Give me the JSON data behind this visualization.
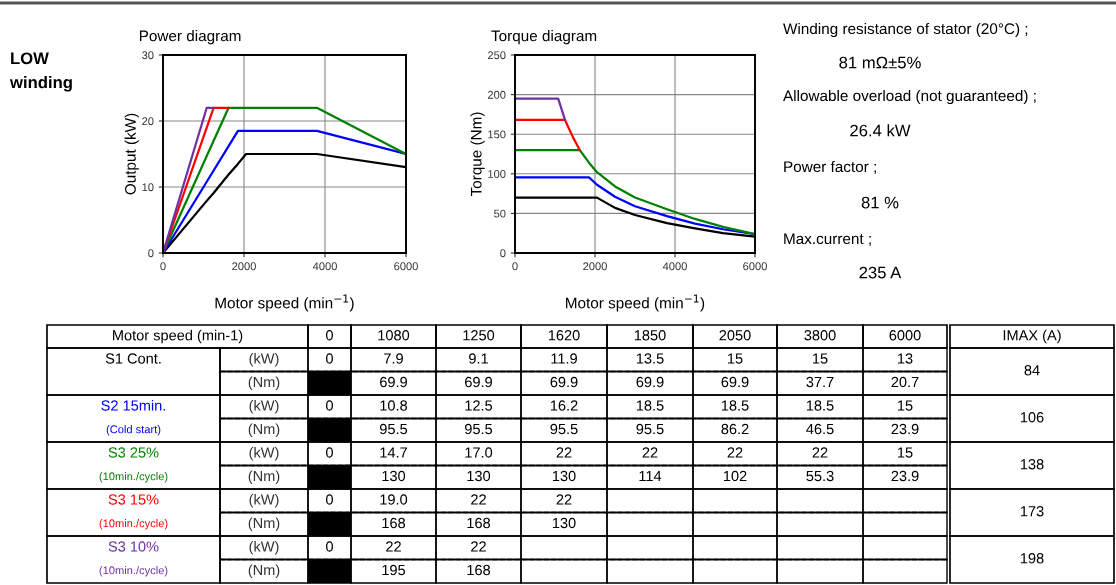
{
  "chart_data": [
    {
      "type": "line",
      "title": "Power diagram",
      "xlabel": "Motor speed (min$^{−1}$)",
      "ylabel": "Output (kW)",
      "xlim": [
        0,
        6000
      ],
      "xticks": [
        0,
        2000,
        4000,
        6000
      ],
      "ylim": [
        0,
        30
      ],
      "yticks": [
        0,
        10,
        20,
        30
      ],
      "grid": true,
      "annotations": [
        "LOW\nwinding"
      ],
      "series": [
        {
          "color": "#000000",
          "x": [
            0,
            1080,
            1250,
            1620,
            1850,
            2050,
            3800,
            6000
          ],
          "values": [
            0,
            7.9,
            9.1,
            11.9,
            13.5,
            15,
            15,
            13
          ]
        },
        {
          "color": "#0000ff",
          "x": [
            0,
            1080,
            1250,
            1620,
            1850,
            2050,
            3800,
            6000
          ],
          "values": [
            0,
            10.8,
            12.5,
            16.2,
            18.5,
            18.5,
            18.5,
            15
          ]
        },
        {
          "color": "#008000",
          "x": [
            0,
            1080,
            1250,
            1620,
            1850,
            2050,
            3800,
            6000
          ],
          "values": [
            0,
            14.7,
            17.0,
            22,
            22,
            22,
            22,
            15
          ]
        },
        {
          "color": "#ff0000",
          "x": [
            0,
            1080,
            1250,
            1620
          ],
          "values": [
            0,
            19.0,
            22,
            22
          ]
        },
        {
          "color": "#7030a0",
          "x": [
            0,
            1080,
            1250
          ],
          "values": [
            0,
            22,
            22
          ]
        }
      ]
    },
    {
      "type": "line",
      "title": "Torque diagram",
      "xlabel": "Motor speed (min$^{−1}$)",
      "ylabel": "Torque (Nm)",
      "xlim": [
        0,
        6000
      ],
      "xticks": [
        0,
        2000,
        4000,
        6000
      ],
      "ylim": [
        0,
        250
      ],
      "yticks": [
        0,
        50,
        100,
        150,
        200,
        250
      ],
      "grid": true,
      "series": [
        {
          "color": "#000000",
          "x": [
            0,
            1080,
            1250,
            1620,
            1850,
            2050,
            2500,
            3000,
            3800,
            4500,
            5200,
            6000
          ],
          "values": [
            69.9,
            69.9,
            69.9,
            69.9,
            69.9,
            69.9,
            57,
            48,
            37.7,
            31,
            25,
            20.7
          ]
        },
        {
          "color": "#0000ff",
          "x": [
            0,
            1080,
            1250,
            1620,
            1850,
            2050,
            2500,
            3000,
            3800,
            4500,
            5200,
            6000
          ],
          "values": [
            95.5,
            95.5,
            95.5,
            95.5,
            95.5,
            86.2,
            71,
            59,
            46.5,
            37,
            30,
            23.9
          ]
        },
        {
          "color": "#008000",
          "x": [
            0,
            1080,
            1250,
            1620,
            1850,
            2050,
            2500,
            3000,
            3800,
            4500,
            5200,
            6000
          ],
          "values": [
            130,
            130,
            130,
            130,
            114,
            102,
            84,
            70,
            55.3,
            43,
            33,
            23.9
          ]
        },
        {
          "color": "#ff0000",
          "x": [
            0,
            1080,
            1250,
            1450,
            1620
          ],
          "values": [
            168,
            168,
            168,
            146,
            130
          ]
        },
        {
          "color": "#7030a0",
          "x": [
            0,
            1080,
            1250
          ],
          "values": [
            195,
            195,
            168
          ]
        }
      ]
    },
    {
      "type": "other",
      "annotations": [
        "Winding resistance of stator (20°C) ;",
        "81 mΩ±5%",
        "Allowable overload (not guaranteed) ;",
        "26.4 kW",
        "Power factor ;",
        "81 %",
        "Max.current ;",
        "235 A"
      ]
    },
    {
      "type": "other",
      "xlabel": "Motor speed (min-1)",
      "categories": [
        "0",
        "1080",
        "1250",
        "1620",
        "1850",
        "2050",
        "3800",
        "6000",
        "IMAX (A)"
      ],
      "y_categories": [
        "S1 Cont.",
        null,
        "S2 15min.",
        "(Cold start)",
        "S3 25%",
        "(10min./cycle)",
        "S3 15%",
        "(10min./cycle)",
        "S3 10%",
        "(10min./cycle)"
      ],
      "y2_categories": [
        "(kW)",
        "(Nm)",
        "(kW)",
        "(Nm)",
        "(kW)",
        "(Nm)",
        "(kW)",
        "(Nm)",
        "(kW)",
        "(Nm)"
      ],
      "colors": [
        "#000000",
        "#000000",
        "#0000ff",
        "#0000ff",
        "#008000",
        "#008000",
        "#ff0000",
        "#ff0000",
        "#7030a0",
        "#7030a0"
      ],
      "cell_labels": [
        [
          "0",
          "7.9",
          "9.1",
          "11.9",
          "13.5",
          "15",
          "15",
          "13",
          "84"
        ],
        [
          null,
          "69.9",
          "69.9",
          "69.9",
          "69.9",
          "69.9",
          "37.7",
          "20.7",
          null
        ],
        [
          "0",
          "10.8",
          "12.5",
          "16.2",
          "18.5",
          "18.5",
          "18.5",
          "15",
          "106"
        ],
        [
          null,
          "95.5",
          "95.5",
          "95.5",
          "95.5",
          "86.2",
          "46.5",
          "23.9",
          null
        ],
        [
          "0",
          "14.7",
          "17.0",
          "22",
          "22",
          "22",
          "22",
          "15",
          "138"
        ],
        [
          null,
          "130",
          "130",
          "130",
          "114",
          "102",
          "55.3",
          "23.9",
          null
        ],
        [
          "0",
          "19.0",
          "22",
          "22",
          null,
          null,
          null,
          null,
          "173"
        ],
        [
          null,
          "168",
          "168",
          "130",
          null,
          null,
          null,
          null,
          null
        ],
        [
          "0",
          "22",
          "22",
          null,
          null,
          null,
          null,
          null,
          "198"
        ],
        [
          null,
          "195",
          "168",
          null,
          null,
          null,
          null,
          null,
          null
        ]
      ]
    }
  ]
}
